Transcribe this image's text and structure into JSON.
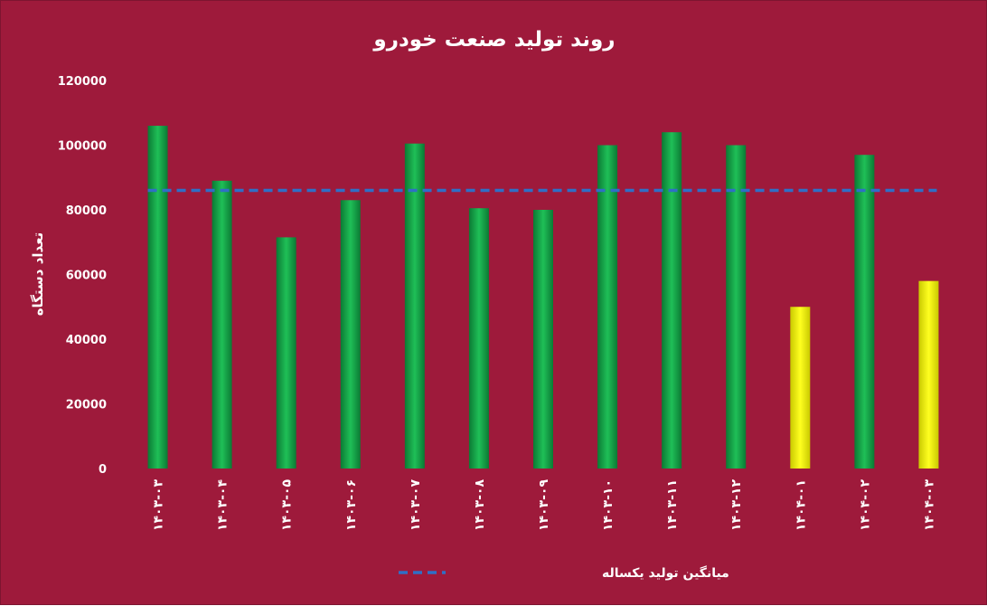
{
  "chart_data": {
    "type": "bar",
    "title": "روند تولید صنعت خودرو",
    "ylabel": "تعداد دستگاه",
    "xlabel": "",
    "ylim": [
      0,
      120000
    ],
    "yticks": [
      0,
      20000,
      40000,
      60000,
      80000,
      100000,
      120000
    ],
    "ytick_labels": [
      "0",
      "20000",
      "40000",
      "60000",
      "80000",
      "100000",
      "120000"
    ],
    "categories": [
      "۱۴۰۳-۰۳",
      "۱۴۰۳-۰۴",
      "۱۴۰۳-۰۵",
      "۱۴۰۳-۰۶",
      "۱۴۰۳-۰۷",
      "۱۴۰۳-۰۸",
      "۱۴۰۳-۰۹",
      "۱۴۰۳-۱۰",
      "۱۴۰۳-۱۱",
      "۱۴۰۳-۱۲",
      "۱۴۰۴-۰۱",
      "۱۴۰۴-۰۲",
      "۱۴۰۴-۰۳"
    ],
    "values": [
      106000,
      89000,
      71500,
      83000,
      100500,
      80500,
      80000,
      100000,
      104000,
      100000,
      50000,
      97000,
      58000
    ],
    "bar_colors": [
      "#17a54a",
      "#17a54a",
      "#17a54a",
      "#17a54a",
      "#17a54a",
      "#17a54a",
      "#17a54a",
      "#17a54a",
      "#17a54a",
      "#17a54a",
      "#f2f20a",
      "#17a54a",
      "#f2f20a"
    ],
    "average_line": {
      "name": "میانگین تولید یکساله",
      "value": 86000,
      "color": "#2f6fc6",
      "style": "dashed"
    },
    "grid": false,
    "legend_position": "bottom",
    "background_color": "#9e1a3b"
  }
}
